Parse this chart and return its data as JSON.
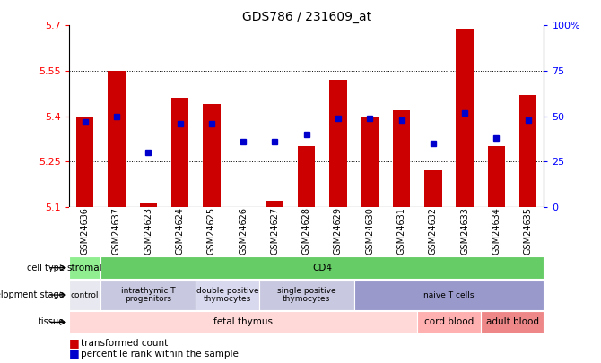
{
  "title": "GDS786 / 231609_at",
  "samples": [
    "GSM24636",
    "GSM24637",
    "GSM24623",
    "GSM24624",
    "GSM24625",
    "GSM24626",
    "GSM24627",
    "GSM24628",
    "GSM24629",
    "GSM24630",
    "GSM24631",
    "GSM24632",
    "GSM24633",
    "GSM24634",
    "GSM24635"
  ],
  "bar_values": [
    5.4,
    5.55,
    5.11,
    5.46,
    5.44,
    5.1,
    5.12,
    5.3,
    5.52,
    5.4,
    5.42,
    5.22,
    5.69,
    5.3,
    5.47
  ],
  "dot_values": [
    47,
    50,
    30,
    46,
    46,
    36,
    36,
    40,
    49,
    49,
    48,
    35,
    52,
    38,
    48
  ],
  "ymin": 5.1,
  "ymax": 5.7,
  "yticks": [
    5.1,
    5.25,
    5.4,
    5.55,
    5.7
  ],
  "right_yticks": [
    0,
    25,
    50,
    75,
    100
  ],
  "bar_color": "#cc0000",
  "dot_color": "#0000cc",
  "cell_type_spans": [
    {
      "span": [
        0,
        1
      ],
      "color": "#90ee90",
      "label": "stromal"
    },
    {
      "span": [
        1,
        15
      ],
      "color": "#66cc66",
      "label": "CD4"
    }
  ],
  "dev_stage_spans": [
    {
      "span": [
        0,
        1
      ],
      "color": "#e8e8f0",
      "label": "control"
    },
    {
      "span": [
        1,
        4
      ],
      "color": "#c8c8e0",
      "label": "intrathymic T\nprogenitors"
    },
    {
      "span": [
        4,
        6
      ],
      "color": "#d8d8ee",
      "label": "double positive\nthymocytes"
    },
    {
      "span": [
        6,
        9
      ],
      "color": "#c8c8e0",
      "label": "single positive\nthymocytes"
    },
    {
      "span": [
        9,
        15
      ],
      "color": "#9999cc",
      "label": "naive T cells"
    }
  ],
  "tissue_spans": [
    {
      "span": [
        0,
        11
      ],
      "color": "#ffd8d8",
      "label": "fetal thymus"
    },
    {
      "span": [
        11,
        13
      ],
      "color": "#ffb0b0",
      "label": "cord blood"
    },
    {
      "span": [
        13,
        15
      ],
      "color": "#ee8888",
      "label": "adult blood"
    }
  ],
  "row_labels": [
    "cell type",
    "development stage",
    "tissue"
  ],
  "legend": [
    "transformed count",
    "percentile rank within the sample"
  ]
}
